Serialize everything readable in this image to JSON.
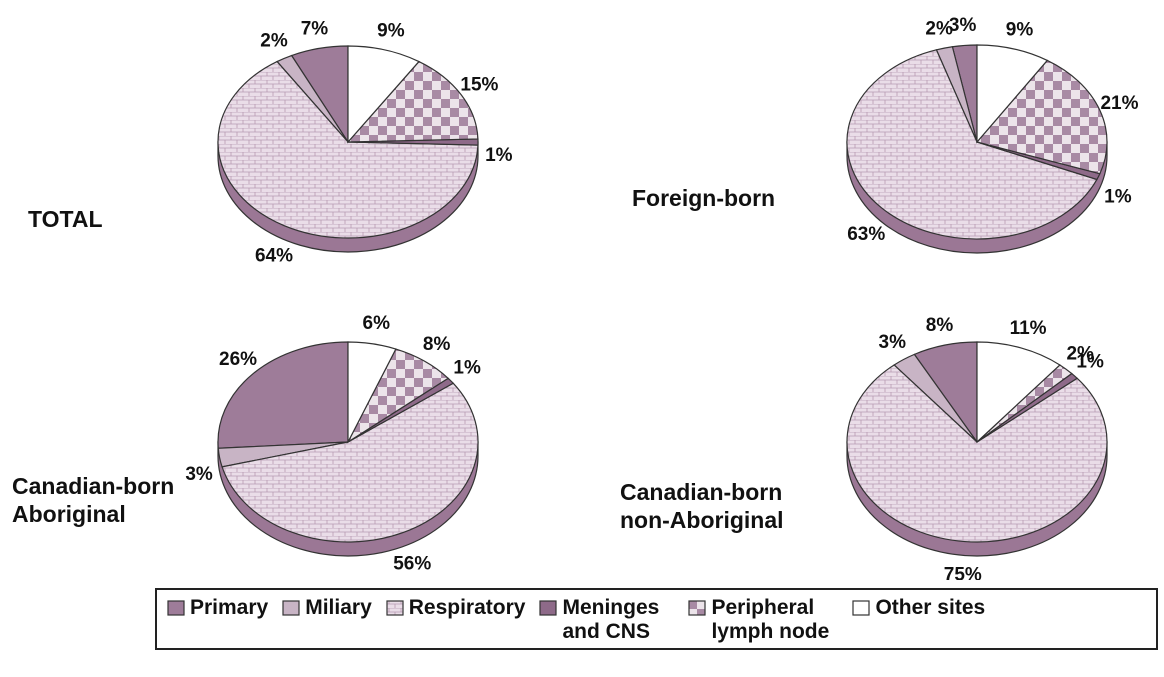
{
  "chart_data": [
    {
      "type": "pie",
      "title": "TOTAL",
      "categories": [
        "Primary",
        "Miliary",
        "Respiratory",
        "Meninges and CNS",
        "Peripheral lymph node",
        "Other sites"
      ],
      "values": [
        7,
        2,
        64,
        1,
        15,
        9
      ],
      "value_labels": [
        "7%",
        "2%",
        "64%",
        "1%",
        "15%",
        "9%"
      ],
      "colors": [
        "#9e7c99",
        "#c8b4c5",
        "#eadde8",
        "#8e6a89",
        "#a88aa4",
        "#ffffff"
      ]
    },
    {
      "type": "pie",
      "title": "Foreign-born",
      "categories": [
        "Primary",
        "Miliary",
        "Respiratory",
        "Meninges and CNS",
        "Peripheral lymph node",
        "Other sites"
      ],
      "values": [
        3,
        2,
        63,
        1,
        21,
        9
      ],
      "value_labels": [
        "3%",
        "2%",
        "63%",
        "1%",
        "21%",
        "9%"
      ],
      "colors": [
        "#9e7c99",
        "#c8b4c5",
        "#eadde8",
        "#8e6a89",
        "#a88aa4",
        "#ffffff"
      ]
    },
    {
      "type": "pie",
      "title": "Canadian-born Aboriginal",
      "categories": [
        "Primary",
        "Miliary",
        "Respiratory",
        "Meninges and CNS",
        "Peripheral lymph node",
        "Other sites"
      ],
      "values": [
        26,
        3,
        56,
        1,
        8,
        6
      ],
      "value_labels": [
        "26%",
        "3%",
        "56%",
        "1%",
        "8%",
        "6%"
      ],
      "colors": [
        "#9e7c99",
        "#c8b4c5",
        "#eadde8",
        "#8e6a89",
        "#a88aa4",
        "#ffffff"
      ]
    },
    {
      "type": "pie",
      "title": "Canadian-born non-Aboriginal",
      "categories": [
        "Primary",
        "Miliary",
        "Respiratory",
        "Meninges and CNS",
        "Peripheral lymph node",
        "Other sites"
      ],
      "values": [
        8,
        3,
        75,
        1,
        2,
        11
      ],
      "value_labels": [
        "8%",
        "3%",
        "75%",
        "1%",
        "2%",
        "11%"
      ],
      "colors": [
        "#9e7c99",
        "#c8b4c5",
        "#eadde8",
        "#8e6a89",
        "#a88aa4",
        "#ffffff"
      ]
    }
  ]
}
